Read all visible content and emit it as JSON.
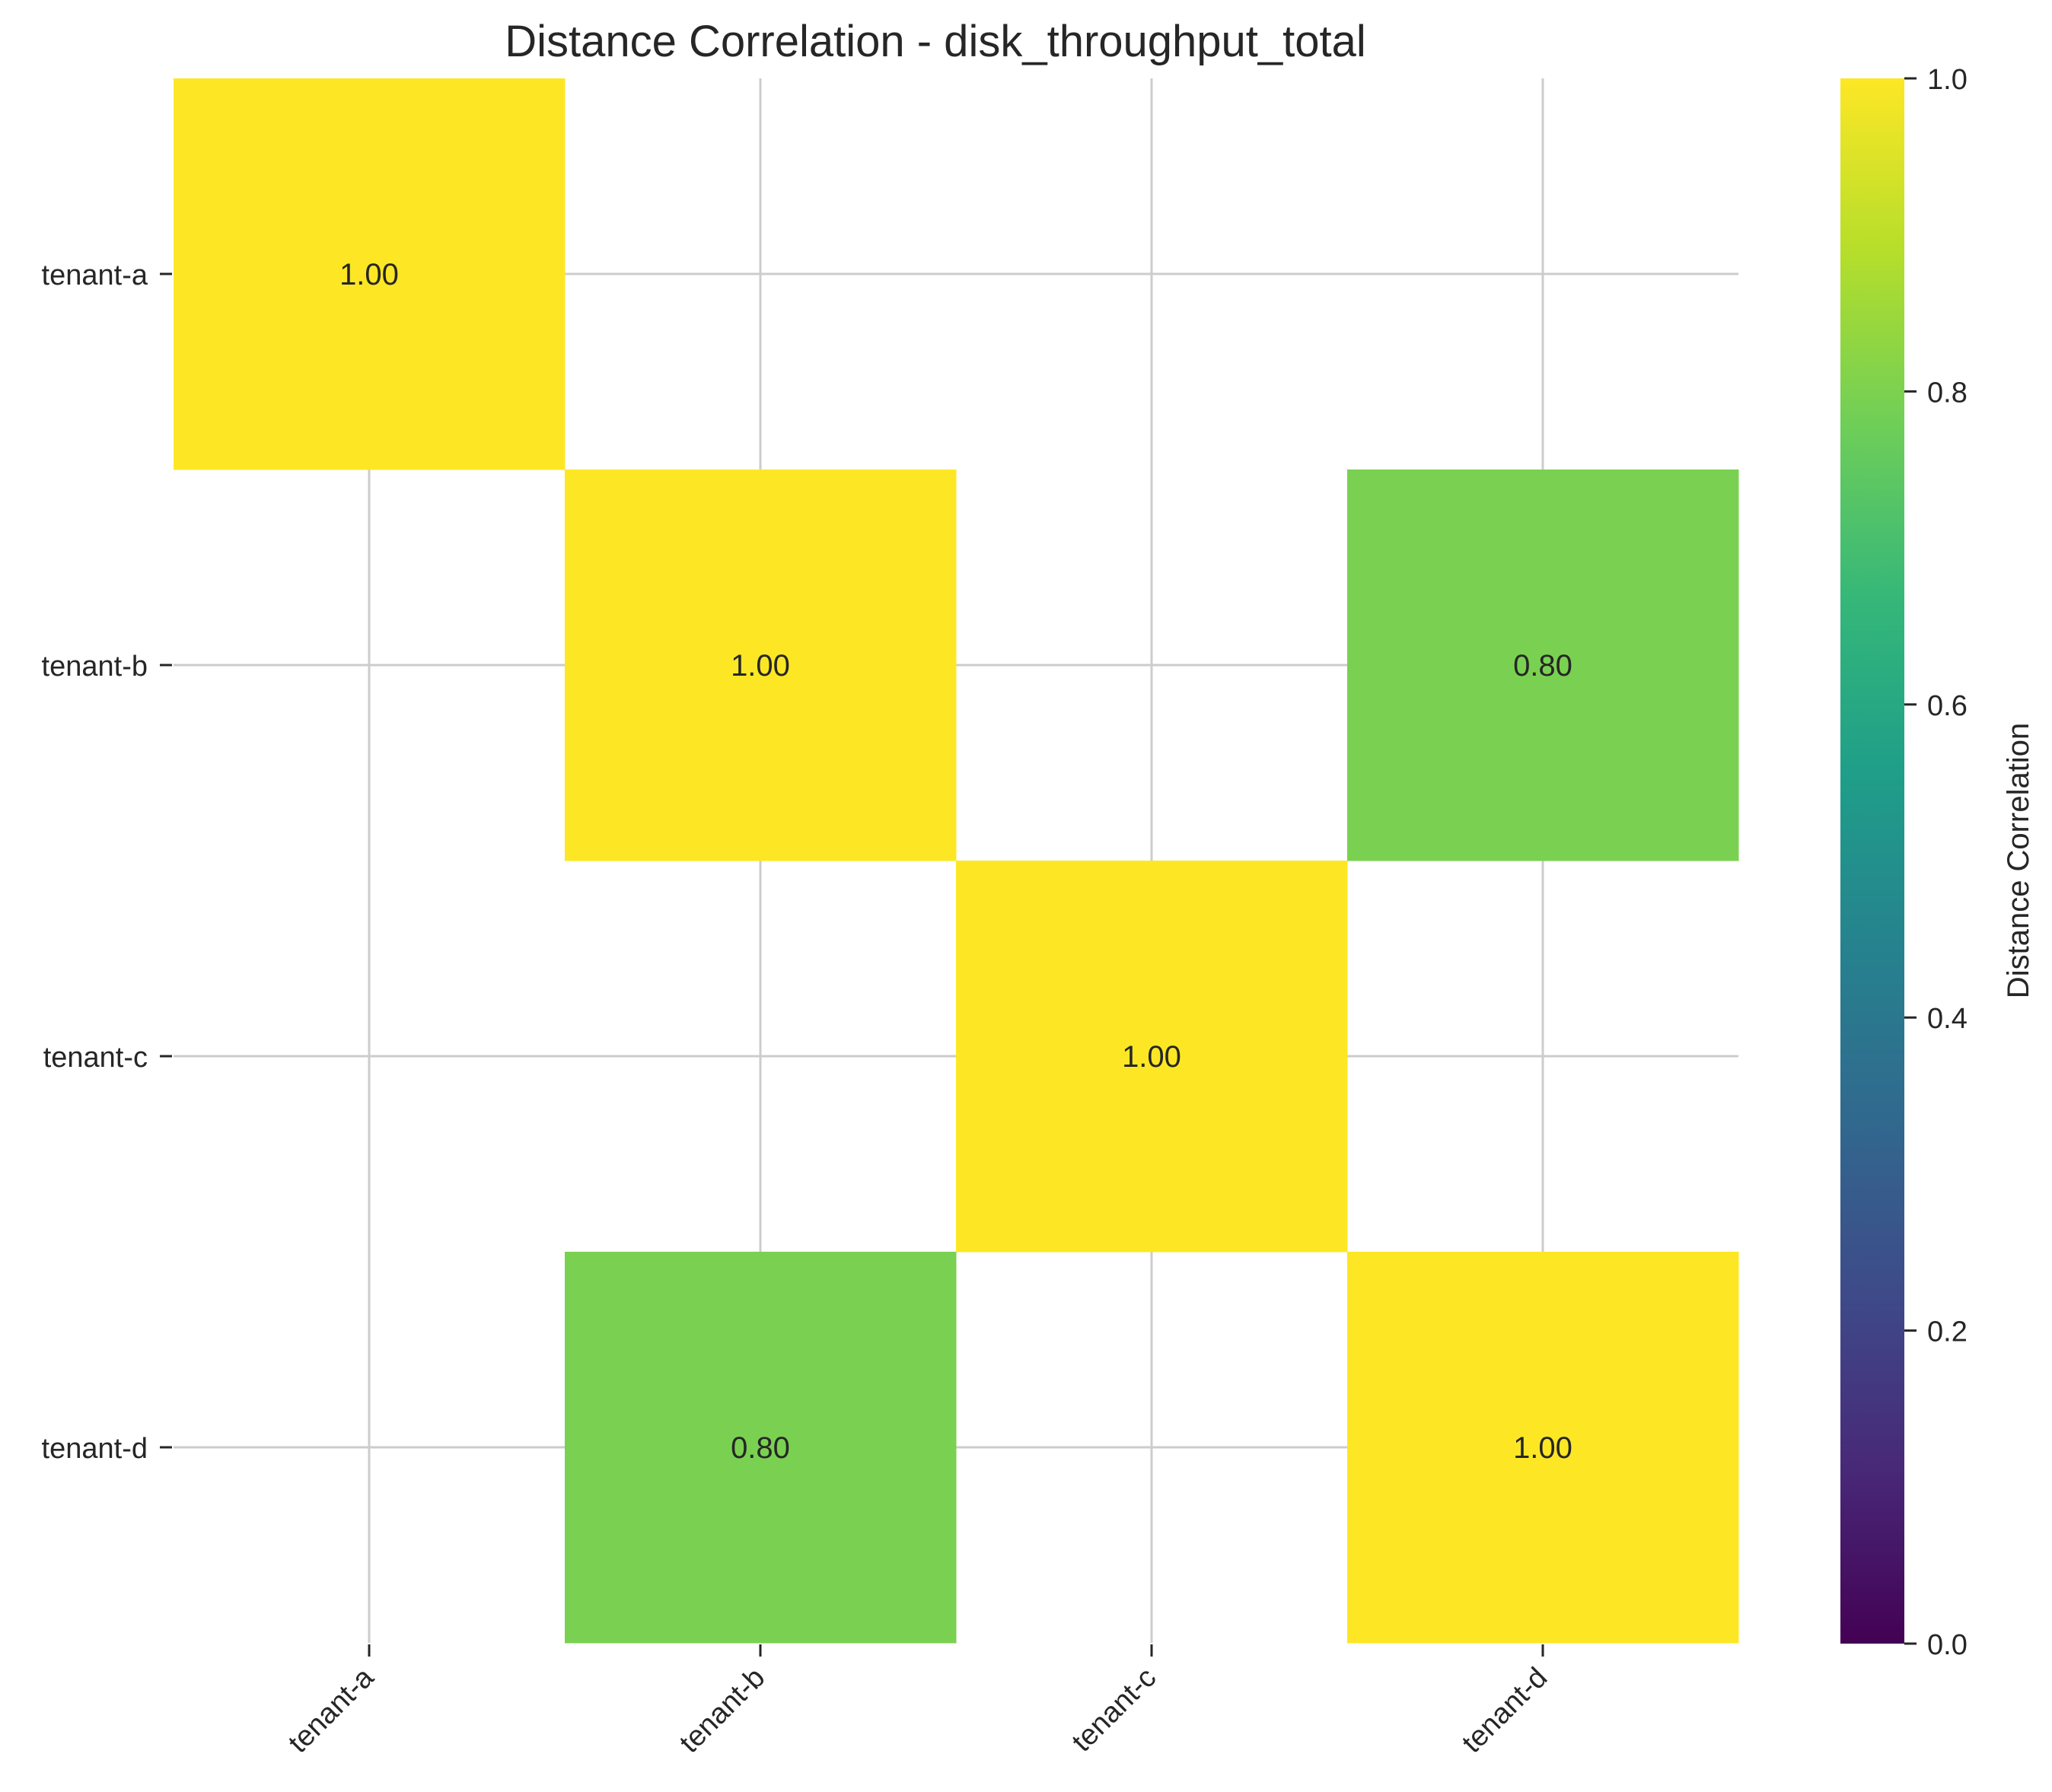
{
  "chart_data": {
    "type": "heatmap",
    "title": "Distance Correlation - disk_throughput_total",
    "x_labels": [
      "tenant-a",
      "tenant-b",
      "tenant-c",
      "tenant-d"
    ],
    "y_labels": [
      "tenant-a",
      "tenant-b",
      "tenant-c",
      "tenant-d"
    ],
    "values": [
      [
        1.0,
        null,
        null,
        null
      ],
      [
        null,
        1.0,
        null,
        0.8
      ],
      [
        null,
        null,
        1.0,
        null
      ],
      [
        null,
        0.8,
        null,
        1.0
      ]
    ],
    "cell_labels": [
      [
        "1.00",
        null,
        null,
        null
      ],
      [
        null,
        "1.00",
        null,
        "0.80"
      ],
      [
        null,
        null,
        "1.00",
        null
      ],
      [
        null,
        "0.80",
        null,
        "1.00"
      ]
    ],
    "colormap": "viridis",
    "colorbar": {
      "label": "Distance Correlation",
      "range": [
        0.0,
        1.0
      ],
      "ticks": [
        0.0,
        0.2,
        0.4,
        0.6,
        0.8,
        1.0
      ],
      "tick_labels": [
        "0.0",
        "0.2",
        "0.4",
        "0.6",
        "0.8",
        "1.0"
      ],
      "stops": [
        "#440154",
        "#482878",
        "#3e4a89",
        "#31688e",
        "#26828e",
        "#1f9e89",
        "#35b779",
        "#6ece58",
        "#b5de2b",
        "#fde725"
      ]
    },
    "grid": true,
    "colors": {
      "high": "#fde725",
      "mid_high": "#7ad151",
      "grid": "#cccccc",
      "text": "#262626"
    }
  }
}
